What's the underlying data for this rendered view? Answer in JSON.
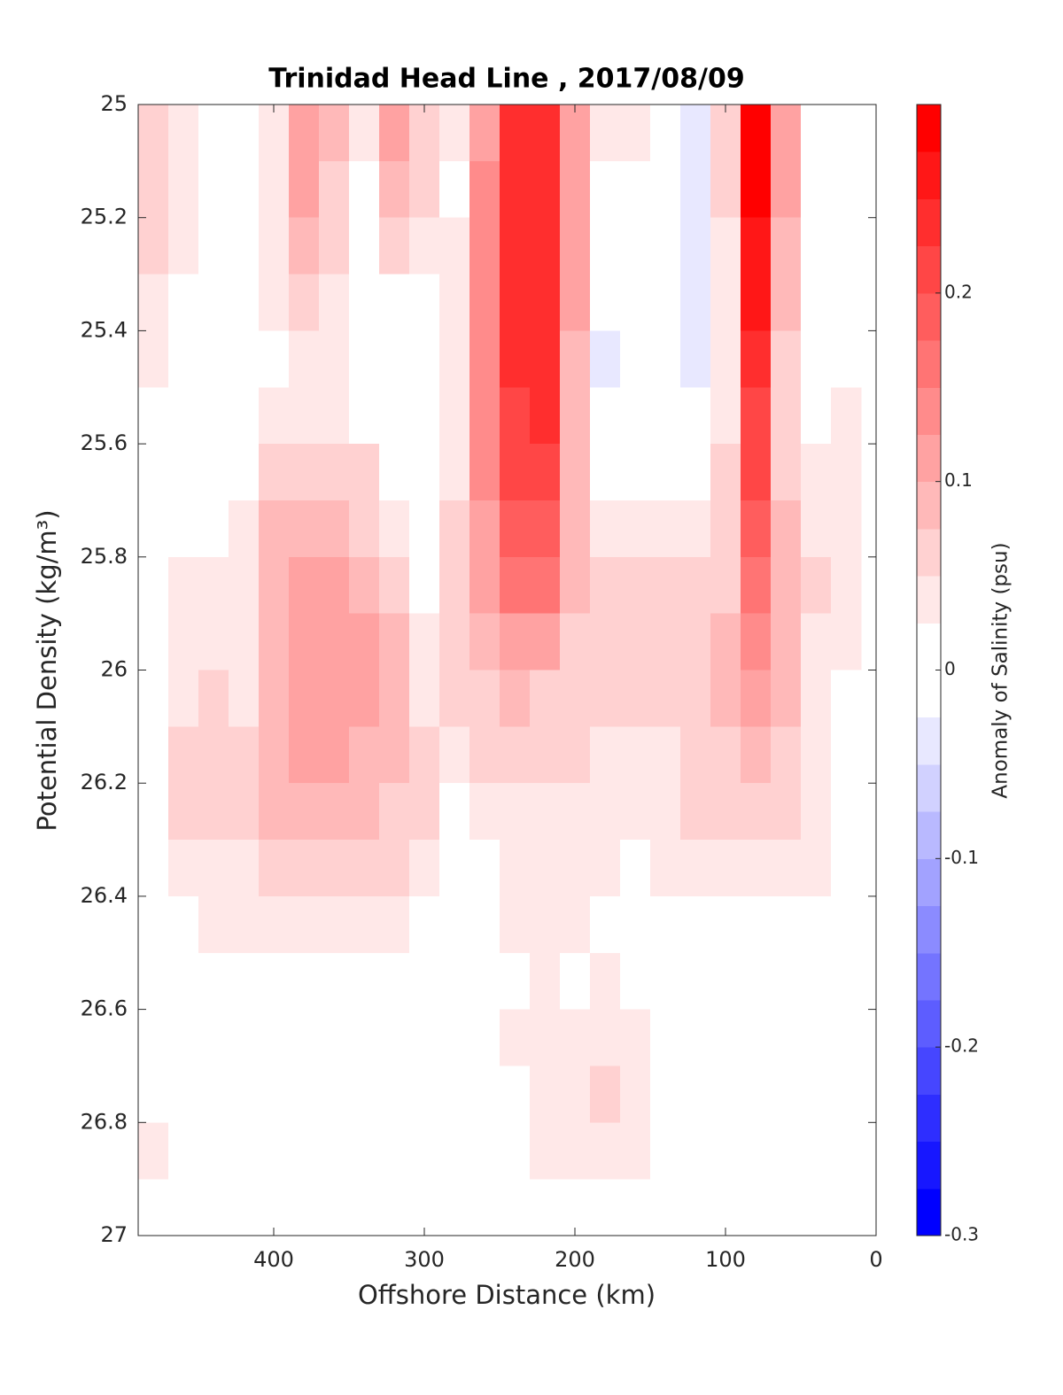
{
  "chart_data": {
    "type": "contourf",
    "title": "Trinidad Head Line , 2017/08/09",
    "xlabel": "Offshore Distance (km)",
    "ylabel": "Potential Density (kg/m³)",
    "colorbar_label": "Anomaly of Salinity (psu)",
    "xlim": [
      490,
      0
    ],
    "xticks": [
      400,
      300,
      200,
      100,
      0
    ],
    "ylim": [
      25,
      27
    ],
    "yticks": [
      25,
      25.2,
      25.4,
      25.6,
      25.8,
      26,
      26.2,
      26.4,
      26.6,
      26.8,
      27
    ],
    "y_reversed": true,
    "clim": [
      -0.3,
      0.3
    ],
    "cticks": [
      -0.3,
      -0.2,
      -0.1,
      0,
      0.1,
      0.2
    ],
    "level_step": 0.025,
    "colormap": {
      "negative": "#0000ff",
      "zero": "#ffffff",
      "positive": "#ff0000"
    },
    "cell_width": 20,
    "cell_height": 0.1,
    "x": [
      480,
      460,
      440,
      420,
      400,
      380,
      360,
      340,
      320,
      300,
      280,
      260,
      240,
      220,
      200,
      180,
      160,
      140,
      120,
      100,
      80,
      60,
      40,
      20
    ],
    "y": [
      25.05,
      25.15,
      25.25,
      25.35,
      25.45,
      25.55,
      25.65,
      25.75,
      25.85,
      25.95,
      26.05,
      26.15,
      26.25,
      26.35,
      26.45,
      26.55,
      26.65,
      26.75,
      26.85
    ],
    "z": [
      [
        0.06,
        0.04,
        -0.02,
        0.01,
        0.04,
        0.12,
        0.08,
        0.03,
        0.1,
        0.06,
        0.03,
        0.12,
        0.23,
        0.24,
        0.12,
        0.04,
        0.04,
        0.02,
        -0.03,
        0.05,
        0.28,
        0.1,
        -0.01,
        0.01
      ],
      [
        0.07,
        0.04,
        -0.02,
        0.01,
        0.04,
        0.1,
        0.07,
        0.02,
        0.08,
        0.05,
        0.02,
        0.13,
        0.23,
        0.24,
        0.12,
        0.02,
        0.02,
        0.01,
        -0.04,
        0.06,
        0.28,
        0.1,
        -0.02,
        0.01
      ],
      [
        0.06,
        0.03,
        -0.02,
        0.01,
        0.03,
        0.08,
        0.05,
        -0.01,
        0.05,
        0.03,
        0.03,
        0.14,
        0.23,
        0.24,
        0.11,
        -0.01,
        0.0,
        0.01,
        -0.04,
        0.04,
        0.26,
        0.09,
        -0.02,
        0.02
      ],
      [
        0.04,
        0.02,
        -0.01,
        0.01,
        0.03,
        0.06,
        0.04,
        -0.01,
        0.02,
        -0.01,
        0.03,
        0.14,
        0.23,
        0.24,
        0.1,
        -0.02,
        -0.01,
        0.0,
        -0.04,
        0.03,
        0.25,
        0.08,
        -0.02,
        0.02
      ],
      [
        0.03,
        0.01,
        -0.02,
        0.0,
        0.02,
        0.04,
        0.03,
        0.01,
        0.01,
        -0.02,
        0.03,
        0.14,
        0.23,
        0.23,
        0.09,
        -0.03,
        -0.02,
        -0.02,
        -0.03,
        0.03,
        0.23,
        0.07,
        -0.01,
        0.02
      ],
      [
        0.01,
        0.0,
        -0.02,
        0.01,
        0.04,
        0.04,
        0.03,
        0.02,
        0.02,
        -0.02,
        0.04,
        0.14,
        0.22,
        0.23,
        0.09,
        -0.02,
        -0.02,
        -0.01,
        -0.01,
        0.04,
        0.22,
        0.07,
        0.01,
        0.03
      ],
      [
        -0.01,
        0.0,
        -0.01,
        0.02,
        0.06,
        0.07,
        0.06,
        0.05,
        0.02,
        -0.01,
        0.04,
        0.14,
        0.21,
        0.21,
        0.09,
        0.0,
        0.01,
        0.01,
        0.0,
        0.05,
        0.21,
        0.07,
        0.03,
        0.03
      ],
      [
        0.0,
        0.02,
        0.01,
        0.04,
        0.08,
        0.09,
        0.08,
        0.07,
        0.04,
        0.01,
        0.05,
        0.12,
        0.19,
        0.18,
        0.08,
        0.04,
        0.04,
        0.04,
        0.03,
        0.06,
        0.19,
        0.08,
        0.04,
        0.03
      ],
      [
        0.01,
        0.03,
        0.04,
        0.04,
        0.08,
        0.11,
        0.1,
        0.09,
        0.07,
        0.02,
        0.05,
        0.1,
        0.16,
        0.15,
        0.08,
        0.06,
        0.06,
        0.06,
        0.05,
        0.07,
        0.17,
        0.09,
        0.05,
        0.03
      ],
      [
        0.0,
        0.03,
        0.03,
        0.03,
        0.08,
        0.12,
        0.11,
        0.1,
        0.08,
        0.03,
        0.05,
        0.08,
        0.12,
        0.11,
        0.07,
        0.06,
        0.05,
        0.06,
        0.06,
        0.08,
        0.14,
        0.09,
        0.04,
        0.03
      ],
      [
        0.0,
        0.04,
        0.05,
        0.04,
        0.08,
        0.12,
        0.11,
        0.1,
        0.08,
        0.04,
        0.05,
        0.06,
        0.08,
        0.07,
        0.06,
        0.05,
        0.05,
        0.05,
        0.06,
        0.08,
        0.11,
        0.08,
        0.04,
        0.02
      ],
      [
        0.0,
        0.05,
        0.06,
        0.05,
        0.08,
        0.11,
        0.1,
        0.09,
        0.08,
        0.05,
        0.04,
        0.05,
        0.05,
        0.05,
        0.05,
        0.04,
        0.04,
        0.04,
        0.06,
        0.07,
        0.08,
        0.06,
        0.04,
        0.02
      ],
      [
        0.0,
        0.05,
        0.07,
        0.05,
        0.08,
        0.09,
        0.08,
        0.08,
        0.07,
        0.05,
        0.02,
        0.03,
        0.04,
        0.04,
        0.04,
        0.04,
        0.03,
        0.04,
        0.05,
        0.06,
        0.06,
        0.05,
        0.03,
        0.02
      ],
      [
        0.0,
        0.03,
        0.04,
        0.04,
        0.05,
        0.06,
        0.06,
        0.05,
        0.05,
        0.04,
        0.0,
        0.02,
        0.03,
        0.04,
        0.04,
        0.03,
        0.02,
        0.03,
        0.03,
        0.04,
        0.04,
        0.04,
        0.03,
        0.01
      ],
      [
        0.0,
        0.01,
        0.03,
        0.03,
        0.03,
        0.04,
        0.04,
        0.03,
        0.03,
        0.02,
        -0.01,
        0.01,
        0.03,
        0.03,
        0.03,
        0.02,
        0.02,
        0.0,
        0.01,
        0.02,
        0.02,
        0.01,
        0.0,
        0.0
      ],
      [
        0.0,
        0.0,
        0.01,
        0.01,
        0.0,
        0.01,
        0.02,
        0.01,
        0.01,
        0.0,
        0.01,
        0.01,
        0.02,
        0.03,
        0.02,
        0.03,
        0.02,
        0.01,
        0.0,
        0.01,
        0.0,
        0.0,
        -0.01,
        0.0
      ],
      [
        0.0,
        0.0,
        0.01,
        0.0,
        0.0,
        0.01,
        0.01,
        0.01,
        0.0,
        0.0,
        0.0,
        0.01,
        0.03,
        0.03,
        0.03,
        0.04,
        0.03,
        0.01,
        0.0,
        0.01,
        0.01,
        0.0,
        -0.02,
        0.0
      ],
      [
        0.02,
        0.0,
        0.01,
        0.0,
        0.0,
        0.0,
        0.0,
        0.01,
        0.0,
        0.01,
        0.0,
        0.01,
        0.02,
        0.03,
        0.04,
        0.05,
        0.04,
        0.01,
        0.0,
        0.0,
        0.01,
        -0.01,
        -0.02,
        0.0
      ],
      [
        0.03,
        0.0,
        0.0,
        0.0,
        0.0,
        0.0,
        0.0,
        0.0,
        -0.01,
        0.0,
        0.0,
        0.01,
        0.02,
        0.03,
        0.04,
        0.04,
        0.03,
        0.01,
        0.0,
        0.0,
        0.0,
        -0.01,
        -0.02,
        0.0
      ]
    ]
  }
}
